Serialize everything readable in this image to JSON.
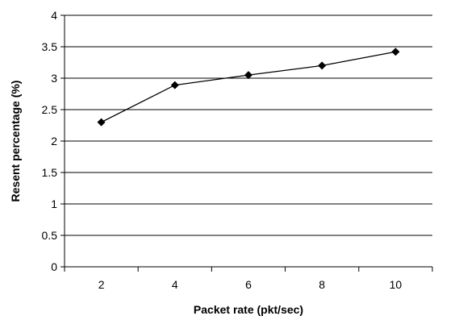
{
  "chart_data": {
    "type": "line",
    "title": "",
    "xlabel": "Packet rate (pkt/sec)",
    "ylabel": "Resent percentage (%)",
    "categories": [
      "2",
      "4",
      "6",
      "8",
      "10"
    ],
    "series": [
      {
        "values": [
          2.3,
          2.89,
          3.05,
          3.2,
          3.42
        ]
      }
    ],
    "ylim": [
      0,
      4
    ],
    "y_ticks": [
      "0",
      "0.5",
      "1",
      "1.5",
      "2",
      "2.5",
      "3",
      "3.5",
      "4"
    ],
    "grid": "horizontal",
    "marker": "diamond",
    "line_color": "#000000",
    "legend": "none"
  }
}
